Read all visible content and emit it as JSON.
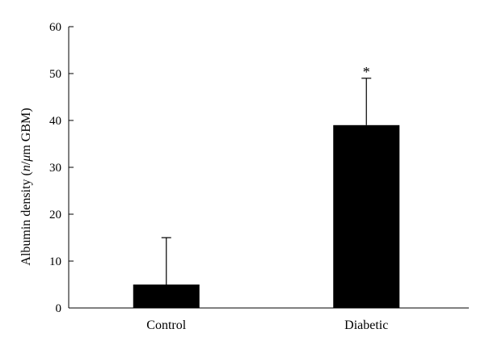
{
  "chart_data": {
    "type": "bar",
    "categories": [
      "Control",
      "Diabetic"
    ],
    "values": [
      5,
      39
    ],
    "error_upper": [
      15,
      49
    ],
    "annotations": [
      "",
      "*"
    ],
    "ylabel_parts": [
      "Albumin density (",
      "n",
      "/",
      "μ",
      "m GBM)"
    ],
    "yticks": [
      0,
      10,
      20,
      30,
      40,
      50,
      60
    ],
    "ylim": [
      0,
      60
    ],
    "bar_color": "#000000",
    "grid": false,
    "legend": "none"
  }
}
